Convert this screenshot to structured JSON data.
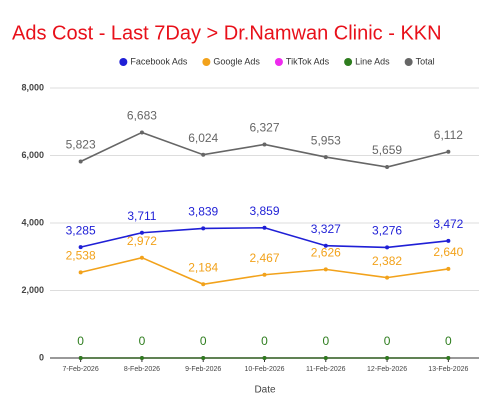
{
  "chart_data": {
    "type": "line",
    "title": "Ads Cost - Last 7Day > Dr.Namwan Clinic - KKN",
    "x_label": "Date",
    "categories": [
      "7-Feb-2026",
      "8-Feb-2026",
      "9-Feb-2026",
      "10-Feb-2026",
      "11-Feb-2026",
      "12-Feb-2026",
      "13-Feb-2026"
    ],
    "ylim": [
      0,
      8000
    ],
    "yticks": [
      0,
      {
        "value": 2000,
        "label": "2,000"
      },
      {
        "value": 4000,
        "label": "4,000"
      },
      {
        "value": 6000,
        "label": "6,000"
      },
      {
        "value": 8000,
        "label": "8,000"
      }
    ],
    "grid": true,
    "legend": "top",
    "series": [
      {
        "name": "Facebook Ads",
        "color": "#1f1fd6",
        "values": [
          3285,
          3711,
          3839,
          3859,
          3327,
          3276,
          3472
        ],
        "value_labels": [
          "3,285",
          "3,711",
          "3,839",
          "3,859",
          "3,327",
          "3,276",
          "3,472"
        ]
      },
      {
        "name": "Google Ads",
        "color": "#f2a21b",
        "values": [
          2538,
          2972,
          2184,
          2467,
          2626,
          2382,
          2640
        ],
        "value_labels": [
          "2,538",
          "2,972",
          "2,184",
          "2,467",
          "2,626",
          "2,382",
          "2,640"
        ]
      },
      {
        "name": "TikTok Ads",
        "color": "#ee2bee",
        "values": [
          0,
          0,
          0,
          0,
          0,
          0,
          0
        ]
      },
      {
        "name": "Line Ads",
        "color": "#2e7d1e",
        "values": [
          0,
          0,
          0,
          0,
          0,
          0,
          0
        ],
        "value_labels": [
          "0",
          "0",
          "0",
          "0",
          "0",
          "0",
          "0"
        ]
      },
      {
        "name": "Total",
        "color": "#666666",
        "values": [
          5823,
          6683,
          6024,
          6327,
          5953,
          5659,
          6112
        ],
        "value_labels": [
          "5,823",
          "6,683",
          "6,024",
          "6,327",
          "5,953",
          "5,659",
          "6,112"
        ]
      }
    ]
  }
}
